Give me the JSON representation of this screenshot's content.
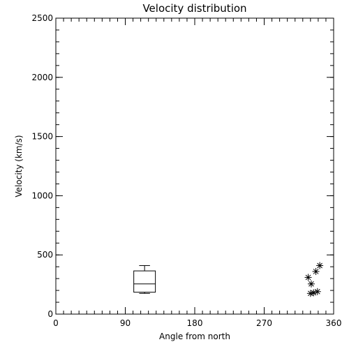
{
  "chart_data": {
    "type": "box_scatter",
    "title": "Velocity distribution",
    "xlabel": "Angle from north",
    "ylabel": "Velocity (km/s)",
    "xlim": [
      0,
      360
    ],
    "ylim": [
      0,
      2500
    ],
    "xticks": [
      0,
      90,
      180,
      270,
      360
    ],
    "yticks": [
      0,
      500,
      1000,
      1500,
      2000,
      2500
    ],
    "x_minor_step": 10,
    "y_minor_step": 100,
    "grid": false,
    "box": {
      "x_min": 101,
      "x_max": 129,
      "whisker_low": 175,
      "q1": 185,
      "median": 255,
      "q3": 365,
      "whisker_high": 410
    },
    "scatter_marker": "asterisk",
    "points": [
      {
        "x": 327,
        "y": 310
      },
      {
        "x": 331,
        "y": 255
      },
      {
        "x": 330,
        "y": 175
      },
      {
        "x": 334,
        "y": 180
      },
      {
        "x": 337,
        "y": 360
      },
      {
        "x": 339,
        "y": 190
      },
      {
        "x": 342,
        "y": 410
      }
    ]
  }
}
